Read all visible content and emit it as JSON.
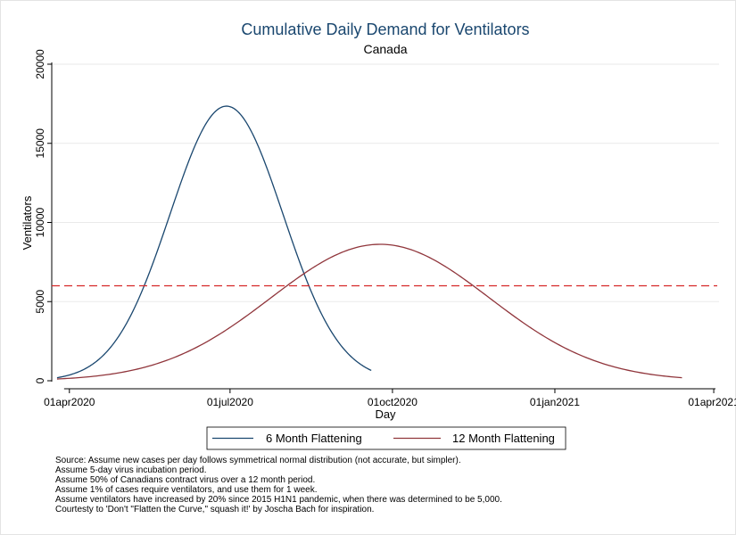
{
  "chart_data": {
    "type": "line",
    "title": "Cumulative Daily Demand for Ventilators",
    "subtitle": "Canada",
    "xlabel": "Day",
    "ylabel": "Ventilators",
    "x_ticks": [
      {
        "date": "2020-04-01",
        "label": "01apr2020"
      },
      {
        "date": "2020-07-01",
        "label": "01jul2020"
      },
      {
        "date": "2020-10-01",
        "label": "01oct2020"
      },
      {
        "date": "2021-01-01",
        "label": "01jan2021"
      },
      {
        "date": "2021-04-01",
        "label": "01apr2021"
      }
    ],
    "xlim": [
      "2020-03-22",
      "2021-04-04"
    ],
    "y_ticks": [
      0,
      5000,
      10000,
      15000,
      20000
    ],
    "ylim": [
      0,
      20000
    ],
    "grid": true,
    "reference_line": {
      "y": 6000,
      "style": "dashed",
      "color": "#d62728"
    },
    "series": [
      {
        "name": "6 Month Flattening",
        "color": "#1a476f",
        "start": "2020-03-25",
        "end": "2020-09-19",
        "peak_date": "2020-06-29",
        "peak_value": 17350,
        "sd_days": 32
      },
      {
        "name": "12 Month Flattening",
        "color": "#90353b",
        "start": "2020-03-25",
        "end": "2021-03-14",
        "peak_date": "2020-09-24",
        "peak_value": 8620,
        "sd_days": 62
      }
    ],
    "legend": {
      "position": "bottom"
    }
  },
  "notes": [
    "Source: Assume new cases per day follows symmetrical normal distribution (not accurate, but simpler).",
    "Assume 5-day virus incubation period.",
    "Assume 50% of Canadians contract virus over a 12 month period.",
    "Assume 1% of cases require ventilators, and use them for 1 week.",
    "Assume ventilators have increased by 20% since 2015 H1N1 pandemic, when there was determined to be 5,000.",
    "Courtesty to 'Don't \"Flatten the Curve,\" squash it!' by Joscha Bach for inspiration."
  ]
}
